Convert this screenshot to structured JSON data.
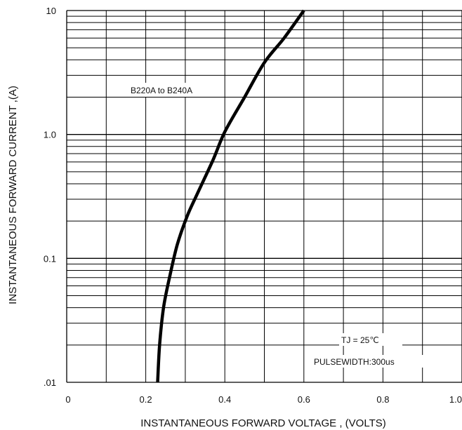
{
  "chart_data": {
    "type": "line",
    "title": "",
    "xlabel": "INSTANTANEOUS FORWARD VOLTAGE , (VOLTS)",
    "ylabel": "INSTANTANEOUS  FORWARD CURRENT ,(A)",
    "xlim": [
      0,
      1.0
    ],
    "ylim": [
      0.01,
      10
    ],
    "y_scale": "log",
    "grid": true,
    "x_ticks": [
      {
        "value": 0,
        "label": "0"
      },
      {
        "value": 0.2,
        "label": "0.2"
      },
      {
        "value": 0.4,
        "label": "0.4"
      },
      {
        "value": 0.6,
        "label": "0.6"
      },
      {
        "value": 0.8,
        "label": "0.8"
      },
      {
        "value": 1.0,
        "label": "1.0"
      }
    ],
    "y_ticks": [
      {
        "value": 0.01,
        "label": ".01"
      },
      {
        "value": 0.1,
        "label": "0.1"
      },
      {
        "value": 1.0,
        "label": "1.0"
      },
      {
        "value": 10,
        "label": "10"
      }
    ],
    "series": [
      {
        "name": "B220A to B240A",
        "x": [
          0.23,
          0.235,
          0.245,
          0.26,
          0.28,
          0.305,
          0.33,
          0.37,
          0.4,
          0.45,
          0.5,
          0.55,
          0.6
        ],
        "y": [
          0.01,
          0.02,
          0.04,
          0.07,
          0.13,
          0.22,
          0.33,
          0.62,
          1.05,
          2.0,
          3.8,
          6.0,
          10.0
        ]
      }
    ],
    "annotations": [
      {
        "id": "tj",
        "text": "TJ = 25℃"
      },
      {
        "id": "pulse",
        "text": "PULSEWIDTH:300us"
      }
    ]
  }
}
